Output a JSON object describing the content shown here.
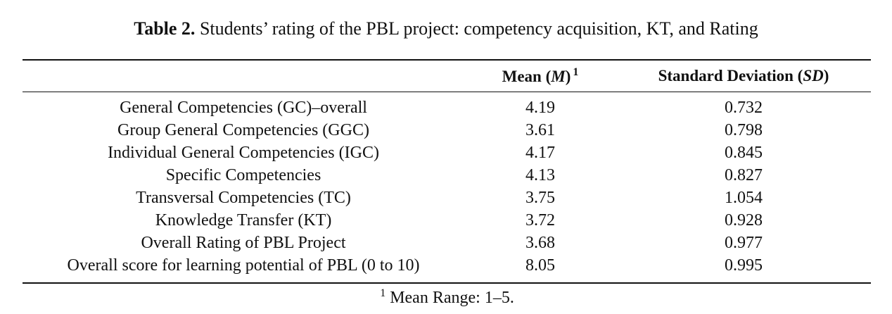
{
  "caption": {
    "label": "Table 2.",
    "text": "Students’ rating of the PBL project: competency acquisition, KT, and Rating"
  },
  "table": {
    "header": [
      {
        "before": "Mean (",
        "italic": "M",
        "after": ")",
        "footnote_mark": "1"
      },
      {
        "before": "Standard Deviation (",
        "italic": "SD",
        "after": ")"
      }
    ],
    "rows": [
      [
        "General Competencies (GC)–overall",
        "4.19",
        "0.732"
      ],
      [
        "Group General Competencies (GGC)",
        "3.61",
        "0.798"
      ],
      [
        "Individual General Competencies (IGC)",
        "4.17",
        "0.845"
      ],
      [
        "Specific Competencies",
        "4.13",
        "0.827"
      ],
      [
        "Transversal Competencies (TC)",
        "3.75",
        "1.054"
      ],
      [
        "Knowledge Transfer (KT)",
        "3.72",
        "0.928"
      ],
      [
        "Overall Rating of PBL Project",
        "3.68",
        "0.977"
      ],
      [
        "Overall score for learning potential of PBL (0 to 10)",
        "8.05",
        "0.995"
      ]
    ]
  },
  "footnote": {
    "mark": "1",
    "text": "Mean Range: 1–5."
  }
}
